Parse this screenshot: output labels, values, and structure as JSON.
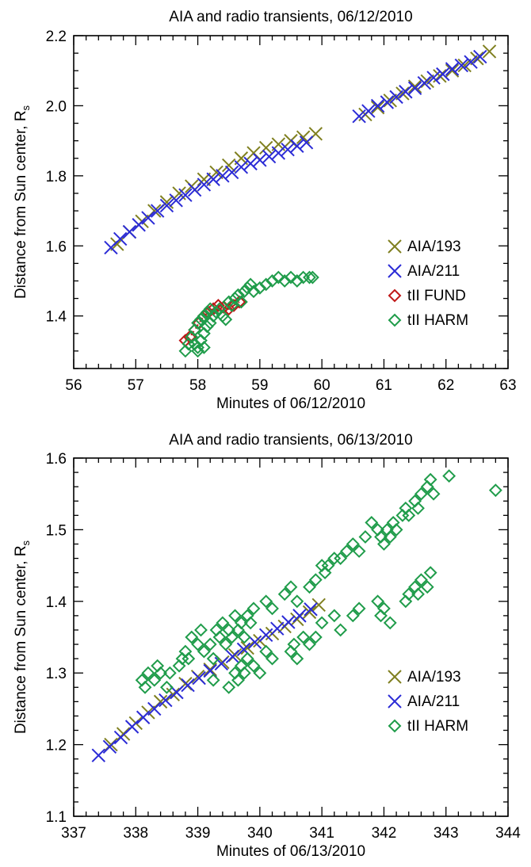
{
  "chart_data": [
    {
      "type": "scatter",
      "title": "AIA and radio transients, 06/12/2010",
      "xlabel": "Minutes of 06/12/2010",
      "ylabel": "Distance from Sun center, R",
      "ylabel_sub": "s",
      "xlim": [
        56,
        63
      ],
      "ylim": [
        1.25,
        2.2
      ],
      "xticks": [
        56,
        57,
        58,
        59,
        60,
        61,
        62,
        63
      ],
      "xtick_labels": [
        "56",
        "57",
        "58",
        "59",
        "60",
        "61",
        "62",
        "63"
      ],
      "yticks": [
        1.4,
        1.6,
        1.8,
        2.0,
        2.2
      ],
      "ytick_labels": [
        "1.4",
        "1.6",
        "1.8",
        "2.0",
        "2.2"
      ],
      "grid": false,
      "legend_position": "bottom-right",
      "series": [
        {
          "name": "AIA/193",
          "marker": "x",
          "color": "#808020",
          "x": [
            56.7,
            56.9,
            57.1,
            57.3,
            57.5,
            57.7,
            57.9,
            58.1,
            58.3,
            58.5,
            58.7,
            58.9,
            59.1,
            59.3,
            59.5,
            59.7,
            59.9,
            60.7,
            60.9,
            61.1,
            61.3,
            61.5,
            61.7,
            61.9,
            62.1,
            62.3,
            62.5,
            62.7
          ],
          "y": [
            1.605,
            1.64,
            1.67,
            1.7,
            1.725,
            1.75,
            1.77,
            1.79,
            1.81,
            1.83,
            1.85,
            1.865,
            1.88,
            1.89,
            1.9,
            1.91,
            1.92,
            1.975,
            1.995,
            2.015,
            2.035,
            2.055,
            2.07,
            2.085,
            2.1,
            2.115,
            2.135,
            2.155
          ]
        },
        {
          "name": "AIA/211",
          "marker": "x",
          "color": "#2b2bd6",
          "x": [
            56.6,
            56.75,
            56.9,
            57.05,
            57.2,
            57.35,
            57.5,
            57.65,
            57.8,
            57.95,
            58.1,
            58.25,
            58.4,
            58.55,
            58.7,
            58.85,
            59.0,
            59.15,
            59.3,
            59.45,
            59.6,
            59.75,
            60.6,
            60.75,
            60.9,
            61.05,
            61.2,
            61.35,
            61.5,
            61.65,
            61.8,
            61.95,
            62.1,
            62.25,
            62.4,
            62.55
          ],
          "y": [
            1.595,
            1.62,
            1.64,
            1.66,
            1.68,
            1.7,
            1.715,
            1.73,
            1.745,
            1.76,
            1.775,
            1.79,
            1.8,
            1.81,
            1.825,
            1.835,
            1.845,
            1.855,
            1.865,
            1.875,
            1.885,
            1.895,
            1.97,
            1.985,
            2.0,
            2.01,
            2.025,
            2.04,
            2.05,
            2.065,
            2.08,
            2.09,
            2.105,
            2.115,
            2.125,
            2.14
          ]
        },
        {
          "name": "tII FUND",
          "marker": "diamond",
          "color": "#c01818",
          "x": [
            57.8,
            57.87,
            57.95,
            58.02,
            58.1,
            58.17,
            58.25,
            58.33,
            58.42,
            58.5,
            58.58,
            58.67
          ],
          "y": [
            1.33,
            1.34,
            1.36,
            1.38,
            1.4,
            1.41,
            1.42,
            1.43,
            1.425,
            1.42,
            1.43,
            1.44
          ]
        },
        {
          "name": "tII HARM",
          "marker": "diamond",
          "color": "#1f9c4a",
          "x": [
            57.8,
            57.85,
            57.9,
            57.95,
            58.0,
            58.0,
            58.05,
            58.05,
            58.1,
            58.1,
            58.15,
            58.15,
            58.2,
            58.2,
            58.25,
            58.3,
            58.35,
            58.4,
            58.45,
            58.5,
            58.55,
            58.6,
            58.65,
            58.7,
            58.75,
            58.8,
            58.85,
            58.9,
            59.0,
            59.1,
            59.2,
            59.3,
            59.4,
            59.5,
            59.6,
            59.7,
            59.8,
            59.85,
            58.0,
            58.1,
            57.95
          ],
          "y": [
            1.3,
            1.32,
            1.34,
            1.36,
            1.38,
            1.31,
            1.39,
            1.33,
            1.4,
            1.35,
            1.41,
            1.37,
            1.42,
            1.38,
            1.4,
            1.41,
            1.42,
            1.4,
            1.39,
            1.44,
            1.43,
            1.45,
            1.46,
            1.44,
            1.47,
            1.48,
            1.49,
            1.47,
            1.48,
            1.49,
            1.5,
            1.51,
            1.5,
            1.51,
            1.5,
            1.51,
            1.51,
            1.51,
            1.3,
            1.31,
            1.32
          ]
        }
      ]
    },
    {
      "type": "scatter",
      "title": "AIA and radio transients, 06/13/2010",
      "xlabel": "Minutes of 06/13/2010",
      "ylabel": "Distance from Sun center, R",
      "ylabel_sub": "s",
      "xlim": [
        337,
        344
      ],
      "ylim": [
        1.1,
        1.6
      ],
      "xticks": [
        337,
        338,
        339,
        340,
        341,
        342,
        343,
        344
      ],
      "xtick_labels": [
        "337",
        "338",
        "339",
        "340",
        "341",
        "342",
        "343",
        "344"
      ],
      "yticks": [
        1.1,
        1.2,
        1.3,
        1.4,
        1.5,
        1.6
      ],
      "ytick_labels": [
        "1.1",
        "1.2",
        "1.3",
        "1.4",
        "1.5",
        "1.6"
      ],
      "grid": false,
      "legend_position": "bottom-right",
      "series": [
        {
          "name": "AIA/193",
          "marker": "x",
          "color": "#808020",
          "x": [
            337.6,
            337.8,
            338.0,
            338.2,
            338.4,
            338.6,
            338.8,
            339.0,
            339.2,
            339.4,
            339.6,
            339.8,
            340.0,
            340.2,
            340.4,
            340.6,
            340.8,
            340.95
          ],
          "y": [
            1.2,
            1.215,
            1.23,
            1.245,
            1.26,
            1.27,
            1.285,
            1.295,
            1.305,
            1.315,
            1.325,
            1.335,
            1.345,
            1.355,
            1.365,
            1.375,
            1.385,
            1.395
          ]
        },
        {
          "name": "AIA/211",
          "marker": "x",
          "color": "#2b2bd6",
          "x": [
            337.4,
            337.58,
            337.76,
            337.94,
            338.12,
            338.3,
            338.48,
            338.66,
            338.84,
            339.02,
            339.2,
            339.38,
            339.56,
            339.74,
            339.92,
            340.1,
            340.28,
            340.46,
            340.64,
            340.82
          ],
          "y": [
            1.185,
            1.197,
            1.21,
            1.225,
            1.238,
            1.25,
            1.262,
            1.273,
            1.283,
            1.293,
            1.303,
            1.313,
            1.323,
            1.333,
            1.343,
            1.353,
            1.362,
            1.371,
            1.38,
            1.389
          ]
        },
        {
          "name": "tII HARM",
          "marker": "diamond",
          "color": "#1f9c4a",
          "x": [
            338.1,
            338.15,
            338.2,
            338.3,
            338.35,
            338.4,
            338.5,
            338.55,
            338.7,
            338.75,
            338.8,
            338.85,
            338.9,
            339.0,
            339.05,
            339.1,
            339.2,
            339.25,
            339.3,
            339.35,
            339.4,
            339.45,
            339.5,
            339.55,
            339.6,
            339.65,
            339.7,
            339.75,
            339.8,
            339.85,
            339.9,
            340.1,
            340.2,
            340.4,
            340.5,
            340.6,
            340.8,
            340.9,
            341.0,
            341.05,
            341.1,
            341.2,
            341.3,
            341.4,
            341.5,
            341.6,
            341.7,
            341.8,
            341.9,
            341.95,
            342.0,
            342.05,
            342.1,
            342.15,
            342.2,
            342.3,
            342.35,
            342.4,
            342.5,
            342.55,
            342.6,
            342.7,
            342.75,
            342.8,
            343.05,
            343.8,
            339.25,
            339.5,
            339.6,
            339.65,
            339.7,
            339.75,
            339.8,
            339.9,
            340.0,
            340.1,
            340.2,
            340.5,
            340.55,
            340.6,
            340.7,
            340.8,
            340.9,
            341.0,
            341.2,
            341.3,
            341.5,
            341.6,
            341.9,
            341.95,
            342.0,
            342.1,
            342.35,
            342.4,
            342.5,
            342.55,
            342.6,
            342.7,
            342.75
          ],
          "y": [
            1.29,
            1.28,
            1.3,
            1.29,
            1.31,
            1.3,
            1.28,
            1.3,
            1.31,
            1.32,
            1.33,
            1.32,
            1.35,
            1.34,
            1.36,
            1.33,
            1.34,
            1.32,
            1.36,
            1.35,
            1.37,
            1.34,
            1.36,
            1.35,
            1.38,
            1.36,
            1.37,
            1.35,
            1.38,
            1.37,
            1.39,
            1.4,
            1.39,
            1.41,
            1.42,
            1.4,
            1.42,
            1.43,
            1.45,
            1.44,
            1.45,
            1.46,
            1.46,
            1.47,
            1.48,
            1.47,
            1.49,
            1.51,
            1.5,
            1.49,
            1.48,
            1.5,
            1.49,
            1.51,
            1.5,
            1.52,
            1.53,
            1.52,
            1.54,
            1.53,
            1.55,
            1.56,
            1.57,
            1.55,
            1.575,
            1.555,
            1.29,
            1.28,
            1.3,
            1.29,
            1.31,
            1.3,
            1.32,
            1.31,
            1.3,
            1.33,
            1.32,
            1.33,
            1.34,
            1.32,
            1.35,
            1.34,
            1.35,
            1.37,
            1.38,
            1.36,
            1.38,
            1.39,
            1.4,
            1.38,
            1.39,
            1.37,
            1.4,
            1.41,
            1.42,
            1.41,
            1.43,
            1.42,
            1.44
          ]
        }
      ]
    }
  ]
}
